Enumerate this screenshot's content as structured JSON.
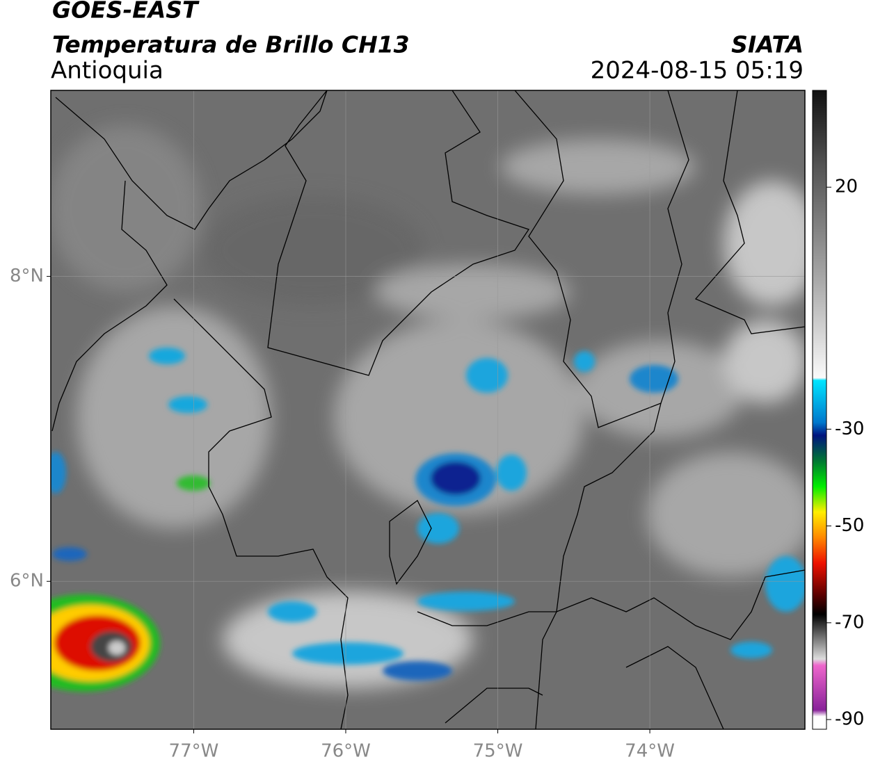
{
  "header": {
    "satellite": "GOES-EAST",
    "product": "Temperatura de Brillo CH13",
    "region": "Antioquia",
    "source": "SIATA",
    "datetime": "2024-08-15 05:19"
  },
  "map": {
    "xlim": [
      -77.94,
      -72.98
    ],
    "ylim": [
      5.03,
      9.22
    ],
    "xticks": [
      {
        "value": -77,
        "label": "77°W"
      },
      {
        "value": -76,
        "label": "76°W"
      },
      {
        "value": -75,
        "label": "75°W"
      },
      {
        "value": -74,
        "label": "74°W"
      }
    ],
    "yticks": [
      {
        "value": 6,
        "label": "6°N"
      },
      {
        "value": 8,
        "label": "8°N"
      }
    ],
    "grid": true
  },
  "colorbar": {
    "lim": [
      -92,
      40
    ],
    "ticks": [
      20,
      -30,
      -50,
      -70,
      -90
    ]
  }
}
